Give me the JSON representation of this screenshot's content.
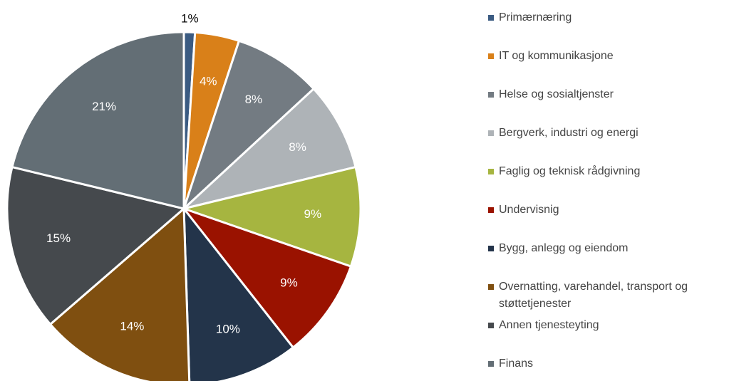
{
  "chart_data": {
    "type": "pie",
    "categories": [
      "Primærnæring",
      "IT og kommunikasjone",
      "Helse og sosialtjenster",
      "Bergverk, industri og energi",
      "Faglig og teknisk rådgivning",
      "Undervisnig",
      "Bygg, anlegg og eiendom",
      "Overnatting, varehandel, transport og støttetjenester",
      "Annen tjenesteyting",
      "Finans"
    ],
    "values": [
      1,
      4,
      8,
      8,
      9,
      9,
      10,
      14,
      15,
      21
    ],
    "value_labels": [
      "1%",
      "4%",
      "8%",
      "8%",
      "9%",
      "9%",
      "10%",
      "14%",
      "15%",
      "21%"
    ],
    "colors": [
      "#3b5b82",
      "#d98019",
      "#737b82",
      "#aeb3b7",
      "#a6b540",
      "#9a1200",
      "#23344a",
      "#7f4f10",
      "#45494d",
      "#636e75"
    ],
    "legend": "right"
  }
}
